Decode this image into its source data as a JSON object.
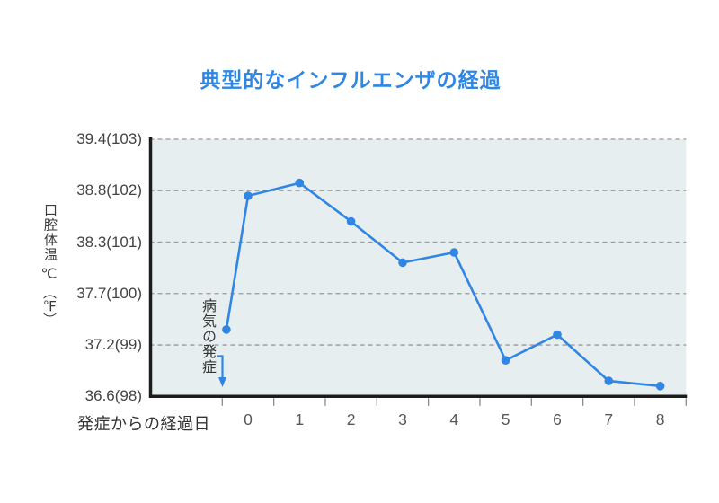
{
  "colors": {
    "title_blue": "#2e87e5",
    "line_blue": "#3186e3",
    "plot_bg": "#e7eeef",
    "gridline": "#999999",
    "axis": "#1c1c1c",
    "tick": "#8a8a8a",
    "label_dark": "#3a3a3a",
    "label_gray": "#585858"
  },
  "chart_data": {
    "type": "line",
    "title": "典型的なインフルエンザの経過",
    "x_axis_label": "発症からの経過日",
    "y_axis_label": "口腔体温",
    "y_axis_units": {
      "celsius": "℃",
      "fahrenheit": "（℉）"
    },
    "annotation": {
      "text": "病気の発症",
      "points_to": "onset point at day -0.4, before day 0"
    },
    "x_labels": [
      "0",
      "1",
      "2",
      "3",
      "4",
      "5",
      "6",
      "7",
      "8"
    ],
    "y_ticks": [
      {
        "label": "39.4(103)",
        "f": 103,
        "c": 39.4
      },
      {
        "label": "38.8(102)",
        "f": 102,
        "c": 38.8
      },
      {
        "label": "38.3(101)",
        "f": 101,
        "c": 38.3
      },
      {
        "label": "37.7(100)",
        "f": 100,
        "c": 37.7
      },
      {
        "label": "37.2(99)",
        "f": 99,
        "c": 37.2
      },
      {
        "label": "36.6(98)",
        "f": 98,
        "c": 36.6
      }
    ],
    "y_range_f": [
      98,
      103
    ],
    "grid": "horizontal dashed lines, light blue plot background",
    "legend": "none",
    "series": [
      {
        "name": "oral-temperature",
        "points": [
          {
            "day": -0.42,
            "temp_f": 99.3,
            "temp_c": 37.4,
            "note": "病気の発症 (onset)"
          },
          {
            "day": 0,
            "temp_f": 101.9,
            "temp_c": 38.8
          },
          {
            "day": 1,
            "temp_f": 102.15,
            "temp_c": 38.9
          },
          {
            "day": 2,
            "temp_f": 101.4,
            "temp_c": 38.6
          },
          {
            "day": 3,
            "temp_f": 100.6,
            "temp_c": 38.1
          },
          {
            "day": 4,
            "temp_f": 100.8,
            "temp_c": 38.2
          },
          {
            "day": 5,
            "temp_f": 98.7,
            "temp_c": 37.1
          },
          {
            "day": 6,
            "temp_f": 99.2,
            "temp_c": 37.3
          },
          {
            "day": 7,
            "temp_f": 98.3,
            "temp_c": 36.8
          },
          {
            "day": 8,
            "temp_f": 98.2,
            "temp_c": 36.8
          }
        ]
      }
    ]
  }
}
